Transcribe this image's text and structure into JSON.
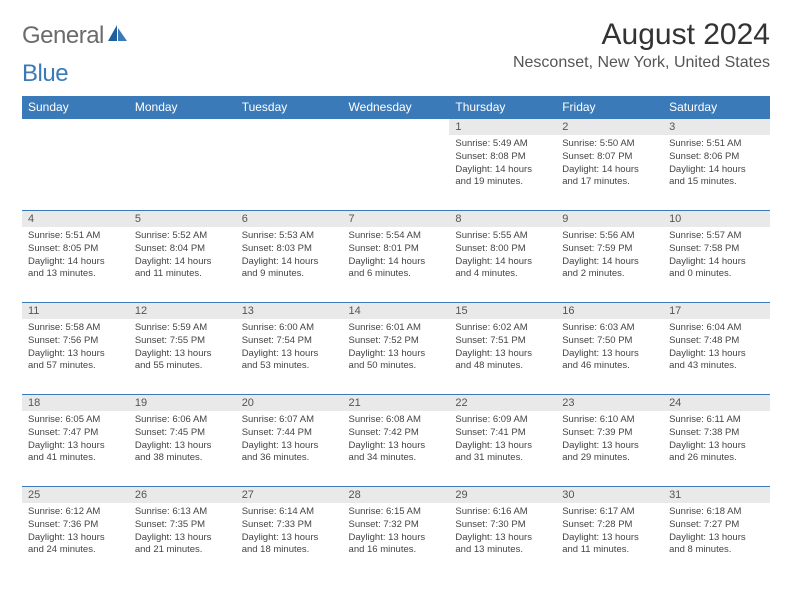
{
  "brand": {
    "part1": "General",
    "part2": "Blue",
    "accent_color": "#3a7ab8",
    "gray_color": "#6b6b6b"
  },
  "title": "August 2024",
  "location": "Nesconset, New York, United States",
  "header_bg": "#3a7ab8",
  "daynum_bg": "#e9e9e9",
  "border_color": "#3a7ab8",
  "weekdays": [
    "Sunday",
    "Monday",
    "Tuesday",
    "Wednesday",
    "Thursday",
    "Friday",
    "Saturday"
  ],
  "first_weekday_index": 4,
  "days": [
    {
      "n": "1",
      "sunrise": "5:49 AM",
      "sunset": "8:08 PM",
      "daylight": "14 hours and 19 minutes."
    },
    {
      "n": "2",
      "sunrise": "5:50 AM",
      "sunset": "8:07 PM",
      "daylight": "14 hours and 17 minutes."
    },
    {
      "n": "3",
      "sunrise": "5:51 AM",
      "sunset": "8:06 PM",
      "daylight": "14 hours and 15 minutes."
    },
    {
      "n": "4",
      "sunrise": "5:51 AM",
      "sunset": "8:05 PM",
      "daylight": "14 hours and 13 minutes."
    },
    {
      "n": "5",
      "sunrise": "5:52 AM",
      "sunset": "8:04 PM",
      "daylight": "14 hours and 11 minutes."
    },
    {
      "n": "6",
      "sunrise": "5:53 AM",
      "sunset": "8:03 PM",
      "daylight": "14 hours and 9 minutes."
    },
    {
      "n": "7",
      "sunrise": "5:54 AM",
      "sunset": "8:01 PM",
      "daylight": "14 hours and 6 minutes."
    },
    {
      "n": "8",
      "sunrise": "5:55 AM",
      "sunset": "8:00 PM",
      "daylight": "14 hours and 4 minutes."
    },
    {
      "n": "9",
      "sunrise": "5:56 AM",
      "sunset": "7:59 PM",
      "daylight": "14 hours and 2 minutes."
    },
    {
      "n": "10",
      "sunrise": "5:57 AM",
      "sunset": "7:58 PM",
      "daylight": "14 hours and 0 minutes."
    },
    {
      "n": "11",
      "sunrise": "5:58 AM",
      "sunset": "7:56 PM",
      "daylight": "13 hours and 57 minutes."
    },
    {
      "n": "12",
      "sunrise": "5:59 AM",
      "sunset": "7:55 PM",
      "daylight": "13 hours and 55 minutes."
    },
    {
      "n": "13",
      "sunrise": "6:00 AM",
      "sunset": "7:54 PM",
      "daylight": "13 hours and 53 minutes."
    },
    {
      "n": "14",
      "sunrise": "6:01 AM",
      "sunset": "7:52 PM",
      "daylight": "13 hours and 50 minutes."
    },
    {
      "n": "15",
      "sunrise": "6:02 AM",
      "sunset": "7:51 PM",
      "daylight": "13 hours and 48 minutes."
    },
    {
      "n": "16",
      "sunrise": "6:03 AM",
      "sunset": "7:50 PM",
      "daylight": "13 hours and 46 minutes."
    },
    {
      "n": "17",
      "sunrise": "6:04 AM",
      "sunset": "7:48 PM",
      "daylight": "13 hours and 43 minutes."
    },
    {
      "n": "18",
      "sunrise": "6:05 AM",
      "sunset": "7:47 PM",
      "daylight": "13 hours and 41 minutes."
    },
    {
      "n": "19",
      "sunrise": "6:06 AM",
      "sunset": "7:45 PM",
      "daylight": "13 hours and 38 minutes."
    },
    {
      "n": "20",
      "sunrise": "6:07 AM",
      "sunset": "7:44 PM",
      "daylight": "13 hours and 36 minutes."
    },
    {
      "n": "21",
      "sunrise": "6:08 AM",
      "sunset": "7:42 PM",
      "daylight": "13 hours and 34 minutes."
    },
    {
      "n": "22",
      "sunrise": "6:09 AM",
      "sunset": "7:41 PM",
      "daylight": "13 hours and 31 minutes."
    },
    {
      "n": "23",
      "sunrise": "6:10 AM",
      "sunset": "7:39 PM",
      "daylight": "13 hours and 29 minutes."
    },
    {
      "n": "24",
      "sunrise": "6:11 AM",
      "sunset": "7:38 PM",
      "daylight": "13 hours and 26 minutes."
    },
    {
      "n": "25",
      "sunrise": "6:12 AM",
      "sunset": "7:36 PM",
      "daylight": "13 hours and 24 minutes."
    },
    {
      "n": "26",
      "sunrise": "6:13 AM",
      "sunset": "7:35 PM",
      "daylight": "13 hours and 21 minutes."
    },
    {
      "n": "27",
      "sunrise": "6:14 AM",
      "sunset": "7:33 PM",
      "daylight": "13 hours and 18 minutes."
    },
    {
      "n": "28",
      "sunrise": "6:15 AM",
      "sunset": "7:32 PM",
      "daylight": "13 hours and 16 minutes."
    },
    {
      "n": "29",
      "sunrise": "6:16 AM",
      "sunset": "7:30 PM",
      "daylight": "13 hours and 13 minutes."
    },
    {
      "n": "30",
      "sunrise": "6:17 AM",
      "sunset": "7:28 PM",
      "daylight": "13 hours and 11 minutes."
    },
    {
      "n": "31",
      "sunrise": "6:18 AM",
      "sunset": "7:27 PM",
      "daylight": "13 hours and 8 minutes."
    }
  ],
  "labels": {
    "sunrise": "Sunrise: ",
    "sunset": "Sunset: ",
    "daylight": "Daylight: "
  }
}
